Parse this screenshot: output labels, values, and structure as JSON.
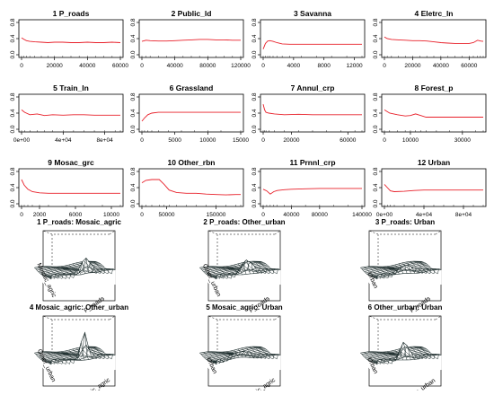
{
  "chart_data": [
    {
      "type": "line",
      "title": "1  P_roads",
      "xlim": [
        0,
        60000
      ],
      "ylim": [
        0,
        0.8
      ],
      "xticks": [
        0,
        20000,
        40000,
        60000
      ],
      "xtick_labels": [
        "0",
        "20000",
        "40000",
        "60000"
      ],
      "yticks": [
        0,
        0.4,
        0.8
      ],
      "ytick_labels": [
        "0.0",
        "0.4",
        "0.8"
      ],
      "x": [
        0,
        1500,
        3000,
        5000,
        8000,
        12000,
        16000,
        20000,
        25000,
        30000,
        35000,
        40000,
        45000,
        50000,
        55000,
        60000
      ],
      "y": [
        0.42,
        0.38,
        0.35,
        0.33,
        0.32,
        0.31,
        0.3,
        0.31,
        0.31,
        0.3,
        0.3,
        0.31,
        0.3,
        0.3,
        0.31,
        0.3
      ]
    },
    {
      "type": "line",
      "title": "2  Public_ld",
      "xlim": [
        0,
        120000
      ],
      "ylim": [
        0,
        0.8
      ],
      "xticks": [
        0,
        40000,
        80000,
        120000
      ],
      "xtick_labels": [
        "0",
        "40000",
        "80000",
        "120000"
      ],
      "yticks": [
        0,
        0.4,
        0.8
      ],
      "ytick_labels": [
        "0.0",
        "0.4",
        "0.8"
      ],
      "x": [
        0,
        5000,
        10000,
        20000,
        30000,
        40000,
        50000,
        60000,
        70000,
        80000,
        90000,
        100000,
        110000,
        120000
      ],
      "y": [
        0.33,
        0.36,
        0.35,
        0.34,
        0.34,
        0.35,
        0.36,
        0.37,
        0.38,
        0.38,
        0.37,
        0.37,
        0.36,
        0.36
      ]
    },
    {
      "type": "line",
      "title": "3  Savanna",
      "xlim": [
        0,
        13000
      ],
      "ylim": [
        0,
        0.8
      ],
      "xticks": [
        0,
        4000,
        8000,
        12000
      ],
      "xtick_labels": [
        "0",
        "4000",
        "8000",
        "12000"
      ],
      "yticks": [
        0,
        0.4,
        0.8
      ],
      "ytick_labels": [
        "0.0",
        "0.4",
        "0.8"
      ],
      "x": [
        0,
        300,
        600,
        900,
        1300,
        1800,
        2500,
        3500,
        5000,
        7000,
        9000,
        11000,
        13000
      ],
      "y": [
        0.14,
        0.28,
        0.34,
        0.35,
        0.33,
        0.3,
        0.27,
        0.26,
        0.26,
        0.26,
        0.26,
        0.26,
        0.26
      ]
    },
    {
      "type": "line",
      "title": "4  Eletrc_ln",
      "xlim": [
        0,
        70000
      ],
      "ylim": [
        0,
        0.8
      ],
      "xticks": [
        0,
        20000,
        40000,
        60000
      ],
      "xtick_labels": [
        "0",
        "20000",
        "40000",
        "60000"
      ],
      "yticks": [
        0,
        0.4,
        0.8
      ],
      "ytick_labels": [
        "0.0",
        "0.4",
        "0.8"
      ],
      "x": [
        0,
        2000,
        5000,
        10000,
        15000,
        20000,
        25000,
        30000,
        35000,
        40000,
        45000,
        50000,
        55000,
        60000,
        63000,
        66000,
        68000,
        70000
      ],
      "y": [
        0.44,
        0.4,
        0.38,
        0.37,
        0.36,
        0.35,
        0.35,
        0.34,
        0.32,
        0.3,
        0.29,
        0.28,
        0.28,
        0.28,
        0.3,
        0.36,
        0.34,
        0.33
      ]
    },
    {
      "type": "line",
      "title": "5  Train_ln",
      "xlim": [
        0,
        95000
      ],
      "ylim": [
        0,
        0.8
      ],
      "xticks": [
        0,
        40000,
        80000
      ],
      "xtick_labels": [
        "0e+00",
        "4e+04",
        "8e+04"
      ],
      "yticks": [
        0,
        0.4,
        0.8
      ],
      "ytick_labels": [
        "0.0",
        "0.4",
        "0.8"
      ],
      "x": [
        0,
        3000,
        8000,
        15000,
        22000,
        30000,
        40000,
        50000,
        60000,
        70000,
        80000,
        90000,
        95000
      ],
      "y": [
        0.48,
        0.42,
        0.36,
        0.38,
        0.34,
        0.36,
        0.35,
        0.36,
        0.36,
        0.35,
        0.35,
        0.35,
        0.35
      ]
    },
    {
      "type": "line",
      "title": "6  Grassland",
      "xlim": [
        0,
        15000
      ],
      "ylim": [
        0,
        0.8
      ],
      "xticks": [
        0,
        5000,
        10000,
        15000
      ],
      "xtick_labels": [
        "0",
        "5000",
        "10000",
        "15000"
      ],
      "yticks": [
        0,
        0.4,
        0.8
      ],
      "ytick_labels": [
        "0.0",
        "0.4",
        "0.8"
      ],
      "x": [
        0,
        400,
        900,
        1500,
        2500,
        4000,
        6000,
        8000,
        10000,
        12000,
        15000
      ],
      "y": [
        0.2,
        0.28,
        0.36,
        0.4,
        0.42,
        0.42,
        0.42,
        0.42,
        0.42,
        0.42,
        0.42
      ]
    },
    {
      "type": "line",
      "title": "7  Annul_crp",
      "xlim": [
        0,
        70000
      ],
      "ylim": [
        0,
        0.8
      ],
      "xticks": [
        0,
        20000,
        60000
      ],
      "xtick_labels": [
        "0",
        "20000",
        "60000"
      ],
      "yticks": [
        0,
        0.4,
        0.8
      ],
      "ytick_labels": [
        "0.0",
        "0.4",
        "0.8"
      ],
      "x": [
        0,
        1000,
        2000,
        4000,
        8000,
        15000,
        25000,
        35000,
        45000,
        55000,
        65000,
        70000
      ],
      "y": [
        0.62,
        0.48,
        0.42,
        0.4,
        0.38,
        0.36,
        0.37,
        0.36,
        0.36,
        0.36,
        0.36,
        0.36
      ]
    },
    {
      "type": "line",
      "title": "8  Forest_p",
      "xlim": [
        0,
        38000
      ],
      "ylim": [
        0,
        0.8
      ],
      "xticks": [
        0,
        10000,
        30000
      ],
      "xtick_labels": [
        "0",
        "10000",
        "30000"
      ],
      "yticks": [
        0,
        0.4,
        0.8
      ],
      "ytick_labels": [
        "0.0",
        "0.4",
        "0.8"
      ],
      "x": [
        0,
        2000,
        5000,
        8000,
        10000,
        12000,
        14000,
        16000,
        20000,
        25000,
        30000,
        35000,
        38000
      ],
      "y": [
        0.48,
        0.4,
        0.36,
        0.33,
        0.34,
        0.38,
        0.34,
        0.3,
        0.3,
        0.3,
        0.3,
        0.3,
        0.3
      ]
    },
    {
      "type": "line",
      "title": "9  Mosac_grc",
      "xlim": [
        0,
        11000
      ],
      "ylim": [
        0,
        0.8
      ],
      "xticks": [
        0,
        2000,
        6000,
        10000
      ],
      "xtick_labels": [
        "0",
        "2000",
        "6000",
        "10000"
      ],
      "yticks": [
        0,
        0.4,
        0.8
      ],
      "ytick_labels": [
        "0.0",
        "0.4",
        "0.8"
      ],
      "x": [
        0,
        300,
        700,
        1200,
        2000,
        3000,
        5000,
        7000,
        9000,
        11000
      ],
      "y": [
        0.6,
        0.46,
        0.36,
        0.3,
        0.27,
        0.26,
        0.26,
        0.26,
        0.26,
        0.26
      ]
    },
    {
      "type": "line",
      "title": "10  Other_rbn",
      "xlim": [
        0,
        200000
      ],
      "ylim": [
        0,
        0.8
      ],
      "xticks": [
        0,
        50000,
        150000
      ],
      "xtick_labels": [
        "0",
        "50000",
        "150000"
      ],
      "yticks": [
        0,
        0.4,
        0.8
      ],
      "ytick_labels": [
        "0.0",
        "0.4",
        "0.8"
      ],
      "x": [
        0,
        8000,
        20000,
        35000,
        45000,
        55000,
        70000,
        90000,
        110000,
        130000,
        150000,
        170000,
        190000,
        200000
      ],
      "y": [
        0.52,
        0.58,
        0.6,
        0.6,
        0.48,
        0.34,
        0.28,
        0.26,
        0.26,
        0.24,
        0.23,
        0.22,
        0.23,
        0.23
      ]
    },
    {
      "type": "line",
      "title": "11  Prnnl_crp",
      "xlim": [
        0,
        140000
      ],
      "ylim": [
        0,
        0.8
      ],
      "xticks": [
        0,
        40000,
        80000,
        140000
      ],
      "xtick_labels": [
        "0",
        "40000",
        "80000",
        "140000"
      ],
      "yticks": [
        0,
        0.4,
        0.8
      ],
      "ytick_labels": [
        "0.0",
        "0.4",
        "0.8"
      ],
      "x": [
        0,
        5000,
        10000,
        15000,
        20000,
        30000,
        40000,
        60000,
        80000,
        100000,
        120000,
        140000
      ],
      "y": [
        0.36,
        0.32,
        0.24,
        0.3,
        0.33,
        0.35,
        0.36,
        0.37,
        0.38,
        0.38,
        0.38,
        0.38
      ]
    },
    {
      "type": "line",
      "title": "12  Urban",
      "xlim": [
        0,
        100000
      ],
      "ylim": [
        0,
        0.8
      ],
      "xticks": [
        0,
        40000,
        80000
      ],
      "xtick_labels": [
        "0e+00",
        "4e+04",
        "8e+04"
      ],
      "yticks": [
        0,
        0.4,
        0.8
      ],
      "ytick_labels": [
        "0.0",
        "0.4",
        "0.8"
      ],
      "x": [
        0,
        3000,
        6000,
        10000,
        20000,
        30000,
        40000,
        50000,
        60000,
        70000,
        80000,
        90000,
        100000
      ],
      "y": [
        0.48,
        0.4,
        0.32,
        0.3,
        0.31,
        0.33,
        0.34,
        0.34,
        0.34,
        0.34,
        0.34,
        0.34,
        0.34
      ]
    }
  ],
  "surface_plots": [
    {
      "title": "1  P_roads: Mosaic_agric",
      "x_axis_label": "P_roads",
      "y_axis_label": "Mosaic_agric"
    },
    {
      "title": "2  P_roads: Other_urban",
      "x_axis_label": "P_roads",
      "y_axis_label": "Other_urban"
    },
    {
      "title": "3  P_roads: Urban",
      "x_axis_label": "P_roads",
      "y_axis_label": "Urban"
    },
    {
      "title": "4  Mosaic_agric: Other_urban",
      "x_axis_label": "Mosaic_agric",
      "y_axis_label": "Other_urban"
    },
    {
      "title": "5  Mosaic_agric: Urban",
      "x_axis_label": "Mosaic_agric",
      "y_axis_label": "Urban"
    },
    {
      "title": "6  Other_urban: Urban",
      "x_axis_label": "Other_urban",
      "y_axis_label": "Urban"
    }
  ],
  "colors": {
    "line": "#e8202a",
    "axis": "#000000",
    "surface_fill": "#ffffff",
    "surface_line": "#1a2a2a"
  }
}
